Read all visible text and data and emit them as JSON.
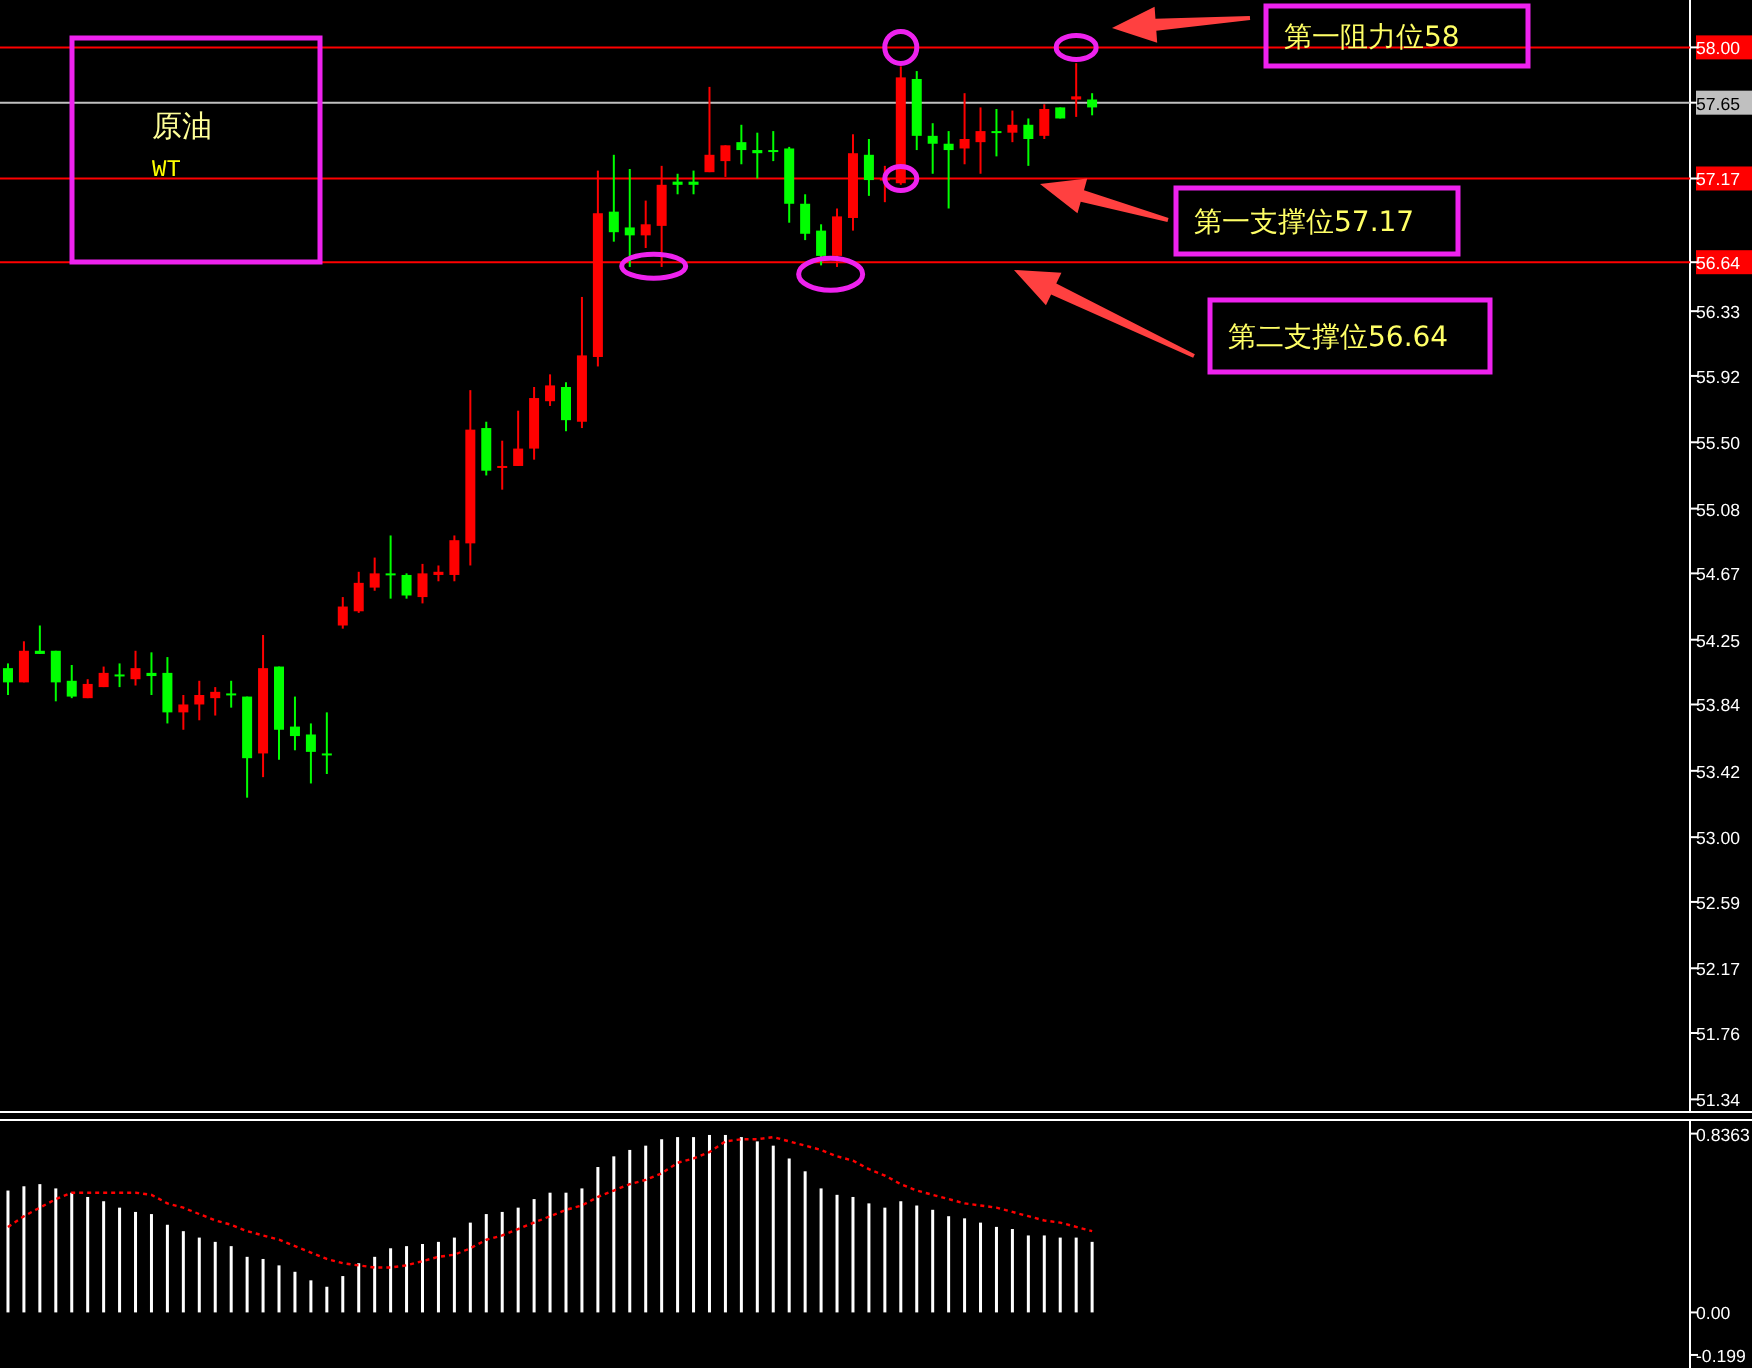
{
  "chart_data": [
    {
      "type": "candlestick",
      "title": "原油",
      "subtitle": "WT",
      "tick_labels": "y",
      "categories": [
        null,
        null,
        null,
        null,
        null,
        null,
        null,
        null,
        null,
        null,
        null,
        null,
        null,
        null,
        null,
        null,
        null,
        null,
        null,
        null,
        null,
        null,
        null,
        null,
        null,
        null,
        null,
        null,
        null,
        null,
        null,
        null,
        null,
        null,
        null,
        null,
        null,
        null,
        null,
        null,
        null,
        null,
        null,
        null,
        null,
        null,
        null,
        null,
        null,
        null,
        null,
        null,
        null,
        null,
        null,
        null,
        null,
        null,
        null,
        null,
        null,
        null,
        null,
        null,
        null,
        null,
        null,
        null,
        null,
        null,
        null,
        null,
        null,
        null,
        null,
        null,
        null,
        null,
        null,
        null,
        null,
        null,
        null,
        null,
        null,
        null,
        null,
        null,
        null,
        null,
        null,
        null,
        null,
        null,
        null,
        null,
        null,
        null,
        null,
        null,
        null,
        null,
        null,
        null,
        null,
        null
      ],
      "ohlc": [
        [
          54.07,
          54.1,
          53.9,
          53.98
        ],
        [
          53.98,
          54.24,
          53.98,
          54.18
        ],
        [
          54.18,
          54.34,
          54.16,
          54.16
        ],
        [
          54.18,
          54.18,
          53.86,
          53.98
        ],
        [
          53.99,
          54.09,
          53.88,
          53.89
        ],
        [
          53.88,
          54.0,
          53.88,
          53.97
        ],
        [
          53.95,
          54.08,
          53.95,
          54.04
        ],
        [
          54.03,
          54.1,
          53.95,
          54.02
        ],
        [
          54.0,
          54.18,
          53.96,
          54.07
        ],
        [
          54.04,
          54.17,
          53.9,
          54.02
        ],
        [
          54.04,
          54.14,
          53.72,
          53.79
        ],
        [
          53.79,
          53.9,
          53.68,
          53.84
        ],
        [
          53.84,
          53.99,
          53.74,
          53.9
        ],
        [
          53.88,
          53.95,
          53.77,
          53.92
        ],
        [
          53.91,
          53.99,
          53.82,
          53.9
        ],
        [
          53.89,
          53.89,
          53.25,
          53.5
        ],
        [
          53.53,
          54.28,
          53.38,
          54.07
        ],
        [
          54.08,
          54.08,
          53.49,
          53.68
        ],
        [
          53.7,
          53.89,
          53.55,
          53.64
        ],
        [
          53.65,
          53.72,
          53.34,
          53.54
        ],
        [
          53.53,
          53.79,
          53.4,
          53.52
        ],
        [
          54.34,
          54.52,
          54.32,
          54.46
        ],
        [
          54.43,
          54.68,
          54.42,
          54.61
        ],
        [
          54.58,
          54.77,
          54.56,
          54.67
        ],
        [
          54.67,
          54.91,
          54.51,
          54.66
        ],
        [
          54.66,
          54.67,
          54.51,
          54.53
        ],
        [
          54.52,
          54.73,
          54.48,
          54.67
        ],
        [
          54.66,
          54.72,
          54.62,
          54.68
        ],
        [
          54.66,
          54.91,
          54.62,
          54.88
        ],
        [
          54.86,
          55.83,
          54.72,
          55.58
        ],
        [
          55.59,
          55.63,
          55.29,
          55.32
        ],
        [
          55.34,
          55.51,
          55.2,
          55.35
        ],
        [
          55.35,
          55.7,
          55.35,
          55.46
        ],
        [
          55.46,
          55.85,
          55.39,
          55.78
        ],
        [
          55.76,
          55.93,
          55.73,
          55.86
        ],
        [
          55.85,
          55.88,
          55.57,
          55.64
        ],
        [
          55.63,
          56.42,
          55.59,
          56.05
        ],
        [
          56.04,
          57.22,
          55.98,
          56.95
        ],
        [
          56.96,
          57.32,
          56.77,
          56.83
        ],
        [
          56.86,
          57.23,
          56.61,
          56.81
        ],
        [
          56.81,
          57.03,
          56.73,
          56.88
        ],
        [
          56.87,
          57.25,
          56.61,
          57.13
        ],
        [
          57.15,
          57.2,
          57.07,
          57.13
        ],
        [
          57.15,
          57.22,
          57.07,
          57.13
        ],
        [
          57.21,
          57.75,
          57.21,
          57.32
        ],
        [
          57.28,
          57.38,
          57.18,
          57.38
        ],
        [
          57.4,
          57.51,
          57.26,
          57.35
        ],
        [
          57.35,
          57.46,
          57.17,
          57.33
        ],
        [
          57.35,
          57.47,
          57.28,
          57.34
        ],
        [
          57.36,
          57.37,
          56.89,
          57.01
        ],
        [
          57.01,
          57.07,
          56.78,
          56.82
        ],
        [
          56.84,
          56.88,
          56.62,
          56.68
        ],
        [
          56.68,
          56.98,
          56.61,
          56.93
        ],
        [
          56.92,
          57.45,
          56.84,
          57.33
        ],
        [
          57.32,
          57.42,
          57.06,
          57.16
        ],
        [
          57.16,
          57.25,
          57.02,
          57.17
        ],
        [
          57.14,
          57.88,
          57.13,
          57.81
        ],
        [
          57.8,
          57.85,
          57.35,
          57.44
        ],
        [
          57.44,
          57.52,
          57.2,
          57.39
        ],
        [
          57.39,
          57.47,
          56.98,
          57.35
        ],
        [
          57.36,
          57.71,
          57.26,
          57.42
        ],
        [
          57.4,
          57.62,
          57.2,
          57.47
        ],
        [
          57.47,
          57.61,
          57.31,
          57.46
        ],
        [
          57.46,
          57.6,
          57.4,
          57.51
        ],
        [
          57.51,
          57.55,
          57.25,
          57.42
        ],
        [
          57.44,
          57.64,
          57.42,
          57.61
        ],
        [
          57.62,
          57.62,
          57.55,
          57.55
        ],
        [
          57.67,
          57.9,
          57.56,
          57.69
        ],
        [
          57.67,
          57.71,
          57.57,
          57.62
        ],
        null,
        null,
        null,
        null,
        null,
        null,
        null,
        null,
        null,
        null,
        null,
        null,
        null,
        null,
        null,
        null,
        null,
        null,
        null,
        null,
        null,
        null,
        null,
        null,
        null,
        null,
        null,
        null,
        null,
        null,
        null,
        null,
        null,
        null,
        null,
        null,
        null
      ],
      "colors": [
        "#00ff00",
        "#ff0000",
        "#00ff00",
        "#00ff00",
        "#00ff00",
        "#ff0000",
        "#ff0000",
        "#00ff00",
        "#ff0000",
        "#00ff00",
        "#00ff00",
        "#ff0000",
        "#ff0000",
        "#ff0000",
        "#00ff00",
        "#00ff00",
        "#ff0000",
        "#00ff00",
        "#00ff00",
        "#00ff00",
        "#00ff00",
        "#ff0000",
        "#ff0000",
        "#ff0000",
        "#00ff00",
        "#00ff00",
        "#ff0000",
        "#ff0000",
        "#ff0000",
        "#ff0000",
        "#00ff00",
        "#ff0000",
        "#ff0000",
        "#ff0000",
        "#ff0000",
        "#00ff00",
        "#ff0000",
        "#ff0000",
        "#00ff00",
        "#00ff00",
        "#ff0000",
        "#ff0000",
        "#00ff00",
        "#00ff00",
        "#ff0000",
        "#ff0000",
        "#00ff00",
        "#00ff00",
        "#00ff00",
        "#00ff00",
        "#00ff00",
        "#00ff00",
        "#ff0000",
        "#ff0000",
        "#00ff00",
        "#ff0000",
        "#ff0000",
        "#00ff00",
        "#00ff00",
        "#00ff00",
        "#ff0000",
        "#ff0000",
        "#00ff00",
        "#ff0000",
        "#00ff00",
        "#ff0000",
        "#00ff00",
        "#ff0000",
        "#00ff00",
        null,
        null,
        null,
        null,
        null,
        null,
        null,
        null,
        null,
        null,
        null,
        null,
        null,
        null,
        null,
        null,
        null,
        null,
        null,
        null,
        null,
        null,
        null,
        null,
        null,
        null,
        null,
        null,
        null,
        null,
        null,
        null,
        null,
        null,
        null,
        null,
        null
      ],
      "ylim": [
        51.26,
        58.3
      ],
      "yticks": [
        51.34,
        51.76,
        52.17,
        52.59,
        {
          "value": 53,
          "label": "53.00"
        },
        53.42,
        53.84,
        54.25,
        54.67,
        55.08,
        {
          "value": 55.5,
          "label": "55.50"
        },
        55.92,
        56.33,
        {
          "value": 56.64,
          "label": "56.64"
        },
        {
          "value": 57.17,
          "label": "57.17"
        },
        {
          "value": 57.65,
          "label": "57.65"
        },
        {
          "value": 58,
          "label": "58.00"
        }
      ],
      "ref_lines": [
        {
          "axis": "y",
          "value": 58,
          "label": "第一阻力位58",
          "color": "#ff0000"
        },
        {
          "axis": "y",
          "value": 57.65,
          "color": "#c0c0c0"
        },
        {
          "axis": "y",
          "value": 57.17,
          "label": "第一支撑位57.17",
          "color": "#ff0000"
        },
        {
          "axis": "y",
          "value": 56.64,
          "label": "第二支撑位56.64",
          "color": "#ff0000"
        }
      ]
    },
    {
      "type": "bar",
      "tick_labels": "y",
      "categories": [
        null,
        null,
        null,
        null,
        null,
        null,
        null,
        null,
        null,
        null,
        null,
        null,
        null,
        null,
        null,
        null,
        null,
        null,
        null,
        null,
        null,
        null,
        null,
        null,
        null,
        null,
        null,
        null,
        null,
        null,
        null,
        null,
        null,
        null,
        null,
        null,
        null,
        null,
        null,
        null,
        null,
        null,
        null,
        null,
        null,
        null,
        null,
        null,
        null,
        null,
        null,
        null,
        null,
        null,
        null,
        null,
        null,
        null,
        null,
        null,
        null,
        null,
        null,
        null,
        null,
        null,
        null,
        null,
        null,
        null,
        null,
        null,
        null,
        null,
        null,
        null,
        null,
        null,
        null,
        null,
        null,
        null,
        null,
        null,
        null,
        null,
        null,
        null,
        null,
        null,
        null,
        null,
        null,
        null,
        null,
        null,
        null,
        null,
        null,
        null,
        null,
        null,
        null,
        null,
        null,
        null
      ],
      "series": [
        {
          "color": "#ffffff",
          "values": [
            0.57,
            0.59,
            0.6,
            0.58,
            0.56,
            0.54,
            0.52,
            0.49,
            0.47,
            0.46,
            0.41,
            0.38,
            0.35,
            0.33,
            0.31,
            0.26,
            0.25,
            0.22,
            0.19,
            0.15,
            0.12,
            0.17,
            0.23,
            0.26,
            0.3,
            0.31,
            0.32,
            0.33,
            0.35,
            0.42,
            0.46,
            0.47,
            0.49,
            0.53,
            0.56,
            0.56,
            0.58,
            0.68,
            0.73,
            0.76,
            0.78,
            0.81,
            0.82,
            0.82,
            0.83,
            0.83,
            0.82,
            0.8,
            0.78,
            0.72,
            0.66,
            0.58,
            0.55,
            0.54,
            0.51,
            0.49,
            0.52,
            0.5,
            0.48,
            0.45,
            0.44,
            0.42,
            0.4,
            0.39,
            0.36,
            0.36,
            0.35,
            0.35,
            0.33,
            null,
            null,
            null,
            null,
            null,
            null,
            null,
            null,
            null,
            null,
            null,
            null,
            null,
            null,
            null,
            null,
            null,
            null,
            null,
            null,
            null,
            null,
            null,
            null,
            null,
            null,
            null,
            null,
            null,
            null,
            null,
            null,
            null,
            null,
            null,
            null,
            null
          ]
        },
        {
          "type": "line",
          "color": "#ff0000",
          "line_style": "dotted",
          "values": [
            0.4,
            0.45,
            0.49,
            0.53,
            0.56,
            0.56,
            0.56,
            0.56,
            0.56,
            0.55,
            0.51,
            0.49,
            0.46,
            0.43,
            0.41,
            0.38,
            0.36,
            0.34,
            0.31,
            0.28,
            0.25,
            0.23,
            0.22,
            0.21,
            0.21,
            0.22,
            0.24,
            0.26,
            0.27,
            0.3,
            0.34,
            0.36,
            0.39,
            0.42,
            0.45,
            0.48,
            0.5,
            0.54,
            0.57,
            0.6,
            0.62,
            0.65,
            0.7,
            0.72,
            0.75,
            0.8,
            0.81,
            0.81,
            0.82,
            0.8,
            0.78,
            0.76,
            0.73,
            0.71,
            0.67,
            0.64,
            0.6,
            0.57,
            0.55,
            0.53,
            0.51,
            0.5,
            0.49,
            0.47,
            0.45,
            0.43,
            0.42,
            0.4,
            0.38,
            null,
            null,
            null,
            null,
            null,
            null,
            null,
            null,
            null,
            null,
            null,
            null,
            null,
            null,
            null,
            null,
            null,
            null,
            null,
            null,
            null,
            null,
            null,
            null,
            null,
            null,
            null,
            null,
            null,
            null,
            null,
            null,
            null,
            null,
            null,
            null,
            null
          ]
        }
      ],
      "ylim": [
        -0.26,
        0.9
      ],
      "yticks": [
        0.8363,
        {
          "value": 0,
          "label": "0.00"
        },
        -0.199
      ]
    }
  ]
}
